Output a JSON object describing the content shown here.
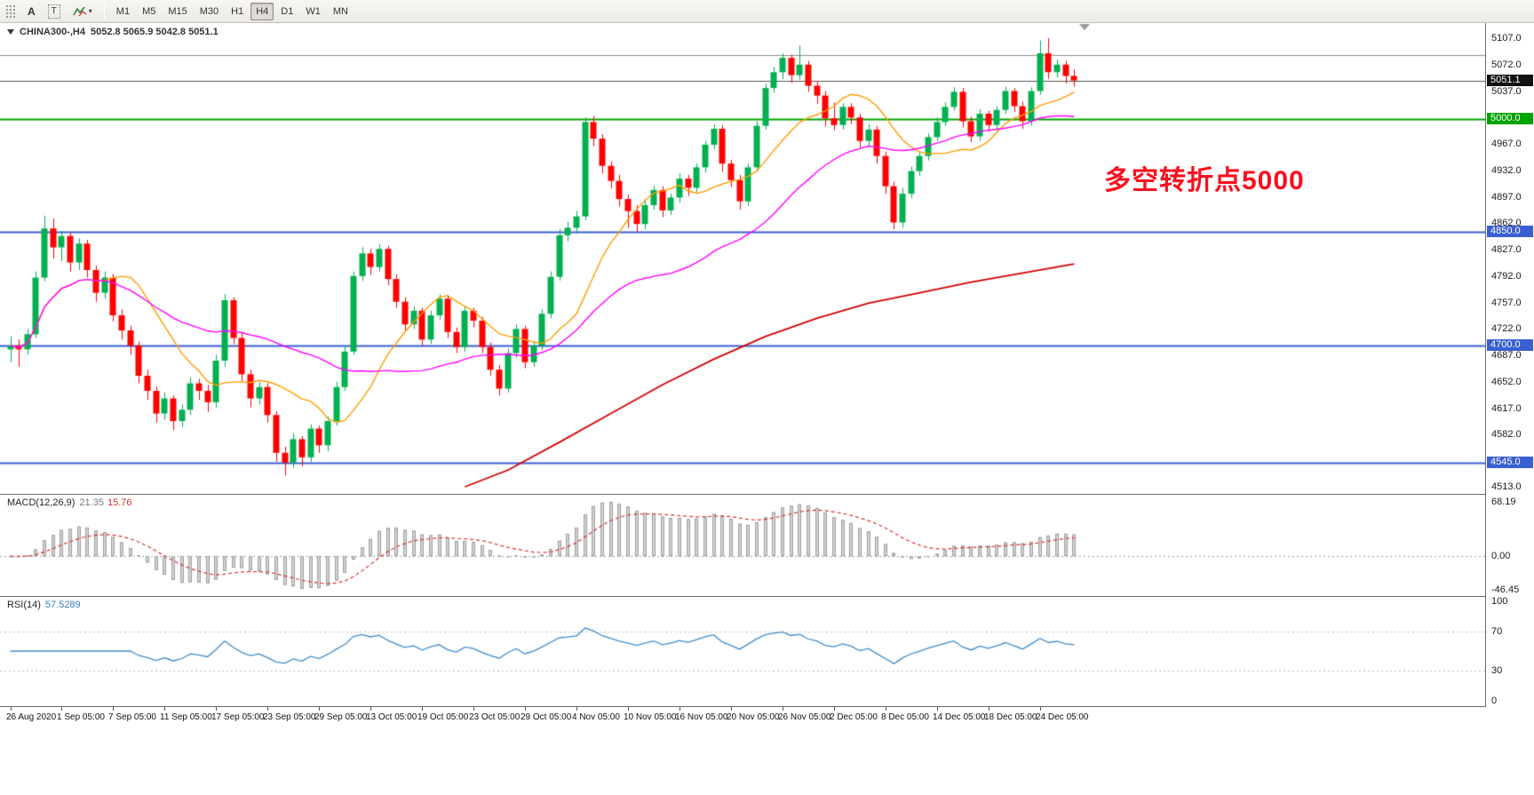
{
  "toolbar": {
    "tools": [
      {
        "label": "A"
      },
      {
        "label": "T"
      }
    ],
    "timeframes": [
      "M1",
      "M5",
      "M15",
      "M30",
      "H1",
      "H4",
      "D1",
      "W1",
      "MN"
    ],
    "active_timeframe": "H4"
  },
  "chart_data": {
    "type": "candlestick",
    "symbol": "CHINA300-",
    "timeframe": "H4",
    "title": "CHINA300-,H4",
    "ohlc_text": "5052.8 5065.9 5042.8 5051.1",
    "ohlc": {
      "open": 5052.8,
      "high": 5065.9,
      "low": 5042.8,
      "close": 5051.1
    },
    "ylim": [
      4513,
      5107
    ],
    "y_ticks": [
      5107,
      5072,
      5037,
      4967,
      4932,
      4897,
      4862,
      4827,
      4792,
      4757,
      4722,
      4687,
      4652,
      4617,
      4582,
      4513
    ],
    "x_label_step": 6,
    "x_labels": [
      "26 Aug 2020",
      "1 Sep 05:00",
      "7 Sep 05:00",
      "11 Sep 05:00",
      "17 Sep 05:00",
      "23 Sep 05:00",
      "29 Sep 05:00",
      "13 Oct 05:00",
      "19 Oct 05:00",
      "23 Oct 05:00",
      "29 Oct 05:00",
      "4 Nov 05:00",
      "10 Nov 05:00",
      "16 Nov 05:00",
      "20 Nov 05:00",
      "26 Nov 05:00",
      "2 Dec 05:00",
      "8 Dec 05:00",
      "14 Dec 05:00",
      "18 Dec 05:00",
      "24 Dec 05:00"
    ],
    "colors": {
      "up": "#00b050",
      "down": "#ff0000",
      "background": "#ffffff"
    },
    "candles": [
      [
        4695,
        4712,
        4678,
        4700
      ],
      [
        4700,
        4708,
        4672,
        4695
      ],
      [
        4695,
        4722,
        4688,
        4715
      ],
      [
        4715,
        4798,
        4710,
        4790
      ],
      [
        4790,
        4872,
        4785,
        4855
      ],
      [
        4855,
        4868,
        4815,
        4830
      ],
      [
        4830,
        4852,
        4812,
        4845
      ],
      [
        4845,
        4850,
        4798,
        4810
      ],
      [
        4810,
        4842,
        4800,
        4835
      ],
      [
        4835,
        4840,
        4790,
        4800
      ],
      [
        4800,
        4806,
        4758,
        4770
      ],
      [
        4770,
        4798,
        4762,
        4790
      ],
      [
        4790,
        4795,
        4732,
        4740
      ],
      [
        4740,
        4748,
        4708,
        4720
      ],
      [
        4720,
        4726,
        4688,
        4700
      ],
      [
        4700,
        4705,
        4650,
        4660
      ],
      [
        4660,
        4668,
        4628,
        4640
      ],
      [
        4640,
        4646,
        4598,
        4610
      ],
      [
        4610,
        4638,
        4602,
        4630
      ],
      [
        4630,
        4634,
        4588,
        4600
      ],
      [
        4600,
        4622,
        4592,
        4615
      ],
      [
        4615,
        4658,
        4608,
        4650
      ],
      [
        4650,
        4656,
        4628,
        4640
      ],
      [
        4640,
        4648,
        4612,
        4625
      ],
      [
        4625,
        4688,
        4618,
        4680
      ],
      [
        4680,
        4768,
        4672,
        4760
      ],
      [
        4760,
        4764,
        4702,
        4710
      ],
      [
        4710,
        4718,
        4652,
        4662
      ],
      [
        4662,
        4668,
        4618,
        4630
      ],
      [
        4630,
        4652,
        4622,
        4645
      ],
      [
        4645,
        4650,
        4598,
        4608
      ],
      [
        4608,
        4613,
        4546,
        4558
      ],
      [
        4558,
        4566,
        4528,
        4545
      ],
      [
        4545,
        4584,
        4538,
        4576
      ],
      [
        4576,
        4580,
        4540,
        4552
      ],
      [
        4552,
        4596,
        4546,
        4590
      ],
      [
        4590,
        4594,
        4558,
        4568
      ],
      [
        4568,
        4606,
        4560,
        4600
      ],
      [
        4600,
        4652,
        4594,
        4645
      ],
      [
        4645,
        4700,
        4640,
        4692
      ],
      [
        4692,
        4798,
        4688,
        4792
      ],
      [
        4792,
        4830,
        4786,
        4822
      ],
      [
        4822,
        4828,
        4794,
        4804
      ],
      [
        4804,
        4834,
        4798,
        4828
      ],
      [
        4828,
        4832,
        4780,
        4788
      ],
      [
        4788,
        4794,
        4750,
        4758
      ],
      [
        4758,
        4764,
        4720,
        4728
      ],
      [
        4728,
        4752,
        4722,
        4746
      ],
      [
        4746,
        4750,
        4700,
        4708
      ],
      [
        4708,
        4746,
        4702,
        4740
      ],
      [
        4740,
        4768,
        4734,
        4762
      ],
      [
        4762,
        4766,
        4710,
        4718
      ],
      [
        4718,
        4724,
        4690,
        4698
      ],
      [
        4698,
        4752,
        4692,
        4746
      ],
      [
        4746,
        4750,
        4724,
        4733
      ],
      [
        4733,
        4738,
        4690,
        4698
      ],
      [
        4698,
        4704,
        4660,
        4668
      ],
      [
        4668,
        4674,
        4634,
        4643
      ],
      [
        4643,
        4696,
        4638,
        4690
      ],
      [
        4690,
        4728,
        4684,
        4722
      ],
      [
        4722,
        4726,
        4670,
        4678
      ],
      [
        4678,
        4706,
        4672,
        4700
      ],
      [
        4700,
        4748,
        4694,
        4742
      ],
      [
        4742,
        4798,
        4736,
        4791
      ],
      [
        4791,
        4854,
        4786,
        4846
      ],
      [
        4846,
        4864,
        4838,
        4856
      ],
      [
        4856,
        4878,
        4848,
        4871
      ],
      [
        4871,
        5002,
        4866,
        4996
      ],
      [
        4996,
        5004,
        4964,
        4974
      ],
      [
        4974,
        4980,
        4928,
        4938
      ],
      [
        4938,
        4944,
        4908,
        4918
      ],
      [
        4918,
        4926,
        4884,
        4894
      ],
      [
        4894,
        4900,
        4856,
        4878
      ],
      [
        4878,
        4886,
        4850,
        4861
      ],
      [
        4861,
        4892,
        4854,
        4886
      ],
      [
        4886,
        4912,
        4880,
        4906
      ],
      [
        4906,
        4911,
        4870,
        4879
      ],
      [
        4879,
        4901,
        4873,
        4896
      ],
      [
        4896,
        4928,
        4889,
        4921
      ],
      [
        4921,
        4926,
        4898,
        4909
      ],
      [
        4909,
        4941,
        4903,
        4936
      ],
      [
        4936,
        4971,
        4929,
        4966
      ],
      [
        4966,
        4993,
        4960,
        4987
      ],
      [
        4987,
        4992,
        4930,
        4941
      ],
      [
        4941,
        4946,
        4910,
        4919
      ],
      [
        4919,
        4926,
        4880,
        4891
      ],
      [
        4891,
        4941,
        4885,
        4936
      ],
      [
        4936,
        4997,
        4931,
        4991
      ],
      [
        4991,
        5047,
        4986,
        5041
      ],
      [
        5041,
        5069,
        5035,
        5062
      ],
      [
        5062,
        5087,
        5053,
        5081
      ],
      [
        5081,
        5085,
        5048,
        5058
      ],
      [
        5058,
        5097,
        5052,
        5072
      ],
      [
        5072,
        5077,
        5036,
        5044
      ],
      [
        5044,
        5050,
        5020,
        5031
      ],
      [
        5031,
        5037,
        4990,
        5001
      ],
      [
        5001,
        5022,
        4985,
        4992
      ],
      [
        4992,
        5021,
        4986,
        5016
      ],
      [
        5016,
        5021,
        4993,
        5002
      ],
      [
        5002,
        5007,
        4962,
        4971
      ],
      [
        4971,
        4993,
        4964,
        4986
      ],
      [
        4986,
        4991,
        4941,
        4951
      ],
      [
        4951,
        4957,
        4901,
        4911
      ],
      [
        4911,
        4917,
        4854,
        4863
      ],
      [
        4863,
        4909,
        4856,
        4901
      ],
      [
        4901,
        4937,
        4895,
        4931
      ],
      [
        4931,
        4957,
        4925,
        4951
      ],
      [
        4951,
        4981,
        4945,
        4976
      ],
      [
        4976,
        5002,
        4971,
        4996
      ],
      [
        4996,
        5022,
        4991,
        5016
      ],
      [
        5016,
        5042,
        5011,
        5036
      ],
      [
        5036,
        5041,
        4989,
        4997
      ],
      [
        4997,
        5003,
        4969,
        4977
      ],
      [
        4977,
        5013,
        4971,
        5007
      ],
      [
        5007,
        5011,
        4983,
        4992
      ],
      [
        4992,
        5017,
        4985,
        5012
      ],
      [
        5012,
        5043,
        5007,
        5037
      ],
      [
        5037,
        5041,
        5009,
        5017
      ],
      [
        5017,
        5023,
        4987,
        4997
      ],
      [
        4997,
        5042,
        4991,
        5037
      ],
      [
        5037,
        5104,
        5032,
        5087
      ],
      [
        5087,
        5107,
        5053,
        5062
      ],
      [
        5062,
        5079,
        5055,
        5072
      ],
      [
        5072,
        5077,
        5047,
        5057
      ],
      [
        5057,
        5065.9,
        5042.8,
        5051.1
      ]
    ],
    "moving_averages": [
      {
        "name": "fast-ma",
        "period": 12,
        "color": "#ff9c00"
      },
      {
        "name": "medium-ma",
        "period": 34,
        "color": "#ff00ff"
      }
    ],
    "slow_ma_color": "#d40000",
    "slow_ma_waypoints": [
      [
        53,
        4513
      ],
      [
        58,
        4535
      ],
      [
        64,
        4572
      ],
      [
        70,
        4610
      ],
      [
        76,
        4648
      ],
      [
        82,
        4682
      ],
      [
        88,
        4712
      ],
      [
        94,
        4736
      ],
      [
        100,
        4756
      ],
      [
        106,
        4770
      ],
      [
        112,
        4784
      ],
      [
        118,
        4796
      ],
      [
        124,
        4808
      ]
    ],
    "hlines": [
      {
        "price": 5085.0,
        "color": "#8c8c8c",
        "width": 1,
        "badge": null
      },
      {
        "price": 5000.0,
        "color": "#00a400",
        "width": 2,
        "badge": "5000.0"
      },
      {
        "price": 4850.0,
        "color": "#3a5fd0",
        "width": 2,
        "badge": "4850.0"
      },
      {
        "price": 4700.0,
        "color": "#3a5fd0",
        "width": 2,
        "badge": "4700.0"
      },
      {
        "price": 4545.0,
        "color": "#3a5fd0",
        "width": 2,
        "badge": "4545.0"
      }
    ],
    "price_line": {
      "price": 5051.1,
      "label": "5051.1",
      "color": "#555555",
      "badge": "#111111"
    },
    "annotation": {
      "text": "多空转折点5000",
      "color": "#fa0f1d"
    },
    "macd": {
      "label": "MACD(12,26,9)",
      "value_main": "21.35",
      "value_signal": "15.76",
      "fast": 12,
      "slow": 26,
      "signal": 9,
      "ticks": {
        "top": "68.19",
        "zero": "0.00",
        "bottom": "-46.45"
      },
      "hist_fill": "#d2d2d2",
      "hist_stroke": "#9f9f9f",
      "signal_color": "#d93030"
    },
    "rsi": {
      "label": "RSI(14)",
      "value": "57.5289",
      "period": 14,
      "levels": [
        70,
        30
      ],
      "ticks": [
        100,
        70,
        30,
        0
      ],
      "color": "#3f8cc9"
    }
  }
}
